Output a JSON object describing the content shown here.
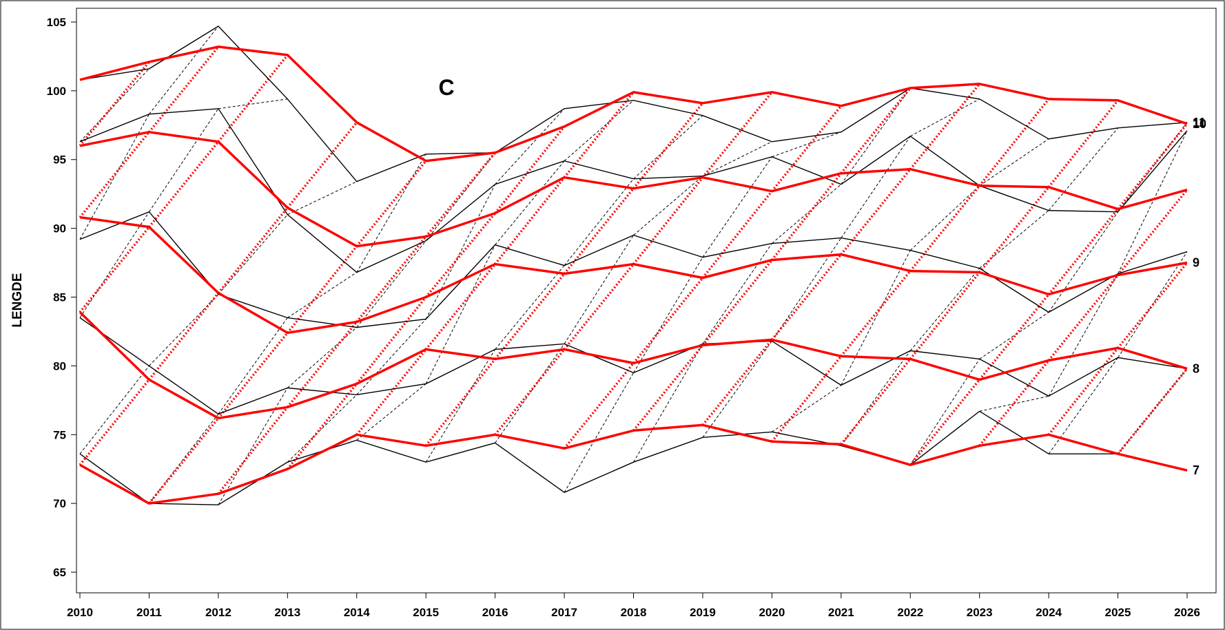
{
  "chart_data": {
    "type": "line",
    "panel_label": "C",
    "ylabel": "LENGDE",
    "xlabel": "",
    "x": [
      2010,
      2011,
      2012,
      2013,
      2014,
      2015,
      2016,
      2017,
      2018,
      2019,
      2020,
      2021,
      2022,
      2023,
      2024,
      2025,
      2026
    ],
    "x_ticks": [
      "2010",
      "2011",
      "2012",
      "2013",
      "2014",
      "2015",
      "2016",
      "2017",
      "2018",
      "2019",
      "2020",
      "2021",
      "2022",
      "2023",
      "2024",
      "2025",
      "2026"
    ],
    "ylim": [
      63.5,
      106
    ],
    "y_ticks": [
      65,
      70,
      75,
      80,
      85,
      90,
      95,
      100,
      105
    ],
    "y_tick_labels": [
      "65",
      "70",
      "75",
      "80",
      "85",
      "90",
      "95",
      "100",
      "105"
    ],
    "grid": false,
    "colors": {
      "observed": "#000000",
      "fitted": "#ff0000"
    },
    "series": [
      {
        "kind": "fitted",
        "end_label": "7",
        "values": [
          72.8,
          70.0,
          70.7,
          72.5,
          75.0,
          74.2,
          75.0,
          74.0,
          75.3,
          75.7,
          74.5,
          74.3,
          72.8,
          74.2,
          75.0,
          73.6,
          72.4
        ]
      },
      {
        "kind": "fitted",
        "end_label": "8",
        "values": [
          83.9,
          79.0,
          76.2,
          77.0,
          78.7,
          81.2,
          80.5,
          81.2,
          80.2,
          81.5,
          81.9,
          80.7,
          80.5,
          79.0,
          80.4,
          81.3,
          79.8
        ]
      },
      {
        "kind": "fitted",
        "end_label": "9",
        "values": [
          90.8,
          90.1,
          85.3,
          82.4,
          83.2,
          85.0,
          87.4,
          86.7,
          87.4,
          86.4,
          87.7,
          88.1,
          86.9,
          86.8,
          85.2,
          86.6,
          87.5
        ]
      },
      {
        "kind": "fitted",
        "end_label": "",
        "values": [
          96.0,
          97.0,
          96.3,
          91.5,
          88.7,
          89.4,
          91.1,
          93.7,
          92.9,
          93.7,
          92.7,
          94.0,
          94.3,
          93.1,
          93.0,
          91.4,
          92.8
        ]
      },
      {
        "kind": "fitted",
        "end_label": "10",
        "values": [
          100.8,
          102.1,
          103.2,
          102.6,
          97.7,
          94.9,
          95.5,
          97.4,
          99.9,
          99.1,
          99.9,
          98.9,
          100.2,
          100.5,
          99.4,
          99.3,
          97.6
        ]
      },
      {
        "kind": "observed",
        "end_label": "",
        "values": [
          73.6,
          70.0,
          69.9,
          73.0,
          74.6,
          73.0,
          74.4,
          70.8,
          73.0,
          74.8,
          75.2,
          74.2,
          72.8,
          76.7,
          73.6,
          73.6,
          null
        ]
      },
      {
        "kind": "observed",
        "end_label": "",
        "values": [
          83.5,
          80.0,
          76.5,
          78.4,
          77.9,
          78.7,
          81.2,
          81.6,
          79.5,
          81.6,
          81.8,
          78.6,
          81.1,
          80.5,
          77.8,
          80.6,
          79.8
        ]
      },
      {
        "kind": "observed",
        "end_label": "",
        "values": [
          89.2,
          91.2,
          85.2,
          83.5,
          82.8,
          83.4,
          88.8,
          87.3,
          89.5,
          87.9,
          88.9,
          89.3,
          88.4,
          87.1,
          83.9,
          86.7,
          88.3
        ]
      },
      {
        "kind": "observed",
        "end_label": "",
        "values": [
          96.3,
          98.3,
          98.7,
          91.0,
          86.8,
          89.1,
          93.2,
          94.9,
          93.6,
          93.8,
          95.2,
          93.2,
          96.7,
          93.1,
          91.3,
          91.2,
          97.1
        ]
      },
      {
        "kind": "observed",
        "end_label": "11",
        "values": [
          100.8,
          101.6,
          104.7,
          99.4,
          93.4,
          95.4,
          95.5,
          98.7,
          99.3,
          98.2,
          96.3,
          97.0,
          100.2,
          99.4,
          96.5,
          97.3,
          97.7
        ]
      }
    ]
  }
}
